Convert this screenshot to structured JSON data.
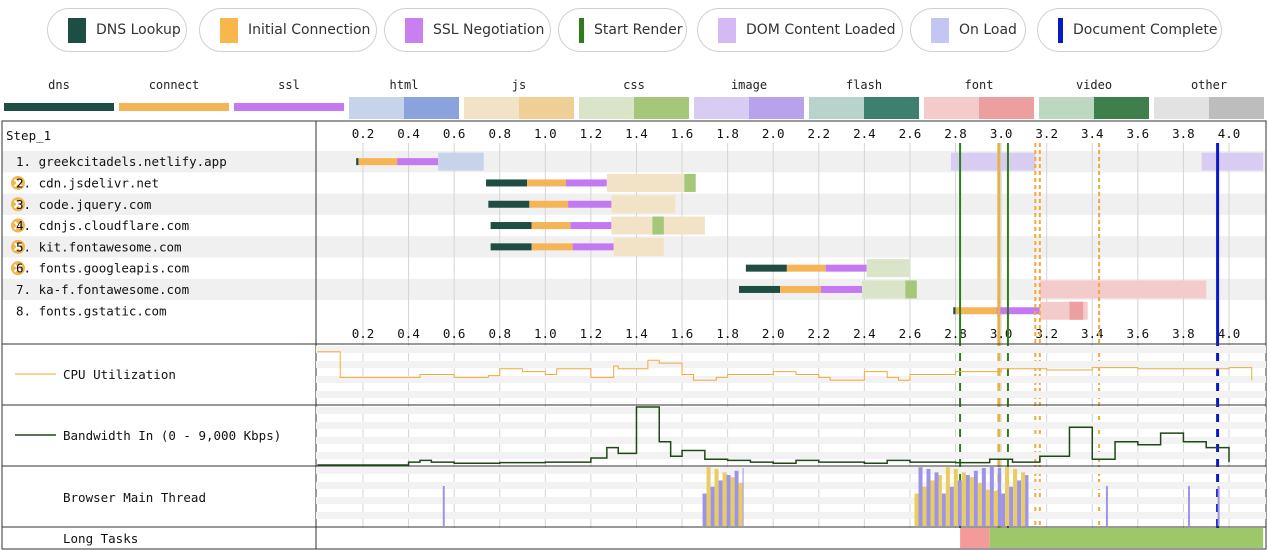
{
  "legend": [
    {
      "label": "DNS Lookup",
      "color": "#1e4d44",
      "kind": "box"
    },
    {
      "label": "Initial Connection",
      "color": "#f8b64c",
      "kind": "box"
    },
    {
      "label": "SSL Negotiation",
      "color": "#c97ff0",
      "kind": "box"
    },
    {
      "label": "Start Render",
      "color": "#2e7d1a",
      "kind": "line"
    },
    {
      "label": "DOM Content Loaded",
      "color": "#d5b9f5",
      "kind": "box"
    },
    {
      "label": "On Load",
      "color": "#c3c5f3",
      "kind": "box"
    },
    {
      "label": "Document Complete",
      "color": "#0a19c7",
      "kind": "line"
    }
  ],
  "content_types": [
    {
      "label": "dns",
      "light": "#1e4d44",
      "dark": "#1e4d44"
    },
    {
      "label": "connect",
      "light": "#f5b556",
      "dark": "#f5b556"
    },
    {
      "label": "ssl",
      "light": "#c479f2",
      "dark": "#c479f2"
    },
    {
      "label": "html",
      "light": "#c6d3ea",
      "dark": "#8aa3dc"
    },
    {
      "label": "js",
      "light": "#f2e2c6",
      "dark": "#efcf96"
    },
    {
      "label": "css",
      "light": "#d9e4c9",
      "dark": "#a4c77a"
    },
    {
      "label": "image",
      "light": "#d9ccf2",
      "dark": "#b7a2ec"
    },
    {
      "label": "flash",
      "light": "#b8d3cc",
      "dark": "#3e8070"
    },
    {
      "label": "font",
      "light": "#f4cbcb",
      "dark": "#ec9f9f"
    },
    {
      "label": "video",
      "light": "#bcd8c0",
      "dark": "#3f7f4c"
    },
    {
      "label": "other",
      "light": "#e2e2e2",
      "dark": "#bdbdbd"
    }
  ],
  "chart_data": {
    "type": "waterfall",
    "step_label": "Step_1",
    "x_ticks": [
      "0.2",
      "0.4",
      "0.6",
      "0.8",
      "1.0",
      "1.2",
      "1.4",
      "1.6",
      "1.8",
      "2.0",
      "2.2",
      "2.4",
      "2.6",
      "2.8",
      "3.0",
      "3.2",
      "3.4",
      "3.6",
      "3.8",
      "4.0"
    ],
    "xlim": [
      0,
      4.15
    ],
    "requests": [
      {
        "label": "1. greekcitadels.netlify.app",
        "blocked": false,
        "dns": [
          0.17,
          0.18
        ],
        "connect": [
          0.18,
          0.35
        ],
        "ssl": [
          0.35,
          0.53
        ],
        "ttfb": [
          0.53,
          0.73
        ],
        "ttfb_type": "html",
        "download": [],
        "dl_type": "html"
      },
      {
        "label": "2. cdn.jsdelivr.net",
        "blocked": true,
        "dns": [
          0.74,
          0.92
        ],
        "connect": [
          0.92,
          1.09
        ],
        "ssl": [
          1.09,
          1.27
        ],
        "ttfb": [
          1.27,
          1.61
        ],
        "ttfb_type": "js",
        "download": [
          1.61,
          1.66
        ],
        "dl_type": "css"
      },
      {
        "label": "3. code.jquery.com",
        "blocked": true,
        "dns": [
          0.75,
          0.93
        ],
        "connect": [
          0.93,
          1.1
        ],
        "ssl": [
          1.1,
          1.29
        ],
        "ttfb": [
          1.29,
          1.57
        ],
        "ttfb_type": "js",
        "download": [],
        "dl_type": "js"
      },
      {
        "label": "4. cdnjs.cloudflare.com",
        "blocked": true,
        "dns": [
          0.76,
          0.94
        ],
        "connect": [
          0.94,
          1.11
        ],
        "ssl": [
          1.11,
          1.29
        ],
        "ttfb": [
          1.29,
          1.7
        ],
        "ttfb_type": "js",
        "download": [
          1.47,
          1.52
        ],
        "dl_type": "css"
      },
      {
        "label": "5. kit.fontawesome.com",
        "blocked": true,
        "dns": [
          0.76,
          0.94
        ],
        "connect": [
          0.94,
          1.12
        ],
        "ssl": [
          1.12,
          1.3
        ],
        "ttfb": [
          1.3,
          1.52
        ],
        "ttfb_type": "js",
        "download": [],
        "dl_type": "js"
      },
      {
        "label": "6. fonts.googleapis.com",
        "blocked": true,
        "dns": [
          1.88,
          2.06
        ],
        "connect": [
          2.06,
          2.23
        ],
        "ssl": [
          2.23,
          2.41
        ],
        "ttfb": [
          2.41,
          2.6
        ],
        "ttfb_type": "css",
        "download": [],
        "dl_type": "css"
      },
      {
        "label": "7. ka-f.fontawesome.com",
        "blocked": false,
        "dns": [
          1.85,
          2.03
        ],
        "connect": [
          2.03,
          2.21
        ],
        "ssl": [
          2.21,
          2.39
        ],
        "ttfb": [
          2.39,
          2.63
        ],
        "ttfb_type": "css",
        "download": [
          2.58,
          2.63
        ],
        "dl_type": "css"
      },
      {
        "label": "8. fonts.gstatic.com",
        "blocked": false,
        "dns": [
          2.79,
          2.8
        ],
        "connect": [
          2.8,
          2.98
        ],
        "ssl": [
          2.98,
          3.17
        ],
        "ttfb": [
          3.17,
          3.38
        ],
        "ttfb_type": "font",
        "download": [
          3.3,
          3.36
        ],
        "dl_type": "font"
      }
    ],
    "extra_bars": [
      {
        "row": 0,
        "range": [
          2.78,
          3.15
        ],
        "type": "image"
      },
      {
        "row": 0,
        "range": [
          3.88,
          4.15
        ],
        "type": "image"
      },
      {
        "row": 6,
        "range": [
          3.17,
          3.9
        ],
        "type": "font"
      }
    ],
    "markers": {
      "start_render": [
        2.82,
        3.03
      ],
      "dom_content_loaded": [
        2.99
      ],
      "on_load": [
        3.15,
        3.17
      ],
      "document_complete": [
        3.95
      ],
      "dashed_orange": [
        3.15,
        3.17,
        3.43
      ]
    },
    "cpu_series": {
      "label": "CPU Utilization",
      "x": [
        0.0,
        0.1,
        0.3,
        0.45,
        0.6,
        0.75,
        0.8,
        0.9,
        1.0,
        1.05,
        1.2,
        1.3,
        1.32,
        1.45,
        1.5,
        1.6,
        1.65,
        1.75,
        1.8,
        2.0,
        2.1,
        2.2,
        2.25,
        2.4,
        2.5,
        2.55,
        2.6,
        2.8,
        3.0,
        3.2,
        3.4,
        3.6,
        3.8,
        4.0,
        4.1
      ],
      "y": [
        90,
        45,
        45,
        50,
        45,
        48,
        60,
        55,
        50,
        60,
        45,
        65,
        60,
        75,
        70,
        50,
        40,
        45,
        50,
        55,
        50,
        45,
        40,
        55,
        45,
        40,
        50,
        55,
        60,
        58,
        62,
        60,
        60,
        62,
        40
      ]
    },
    "bandwidth_series": {
      "label": "Bandwidth In (0 - 9,000 Kbps)",
      "x": [
        0.0,
        0.2,
        0.4,
        0.45,
        0.5,
        0.6,
        0.8,
        1.0,
        1.2,
        1.27,
        1.32,
        1.4,
        1.5,
        1.55,
        1.6,
        1.7,
        1.8,
        1.9,
        2.0,
        2.1,
        2.2,
        2.4,
        2.5,
        2.6,
        2.8,
        2.95,
        3.05,
        3.17,
        3.3,
        3.4,
        3.5,
        3.6,
        3.7,
        3.8,
        3.9,
        4.0
      ],
      "y": [
        0,
        0,
        5,
        8,
        5,
        3,
        4,
        5,
        12,
        30,
        20,
        100,
        40,
        15,
        25,
        10,
        8,
        5,
        3,
        8,
        5,
        3,
        8,
        5,
        4,
        10,
        5,
        15,
        65,
        10,
        40,
        35,
        55,
        40,
        30,
        5
      ]
    },
    "main_thread": {
      "label": "Browser Main Thread",
      "bursts": [
        {
          "range": [
            1.69,
            1.87
          ],
          "colors": [
            "#9d94ea",
            "#e9cd5e"
          ]
        },
        {
          "range": [
            2.62,
            2.74
          ],
          "colors": [
            "#e9cd5e",
            "#9d94ea"
          ]
        },
        {
          "range": [
            2.74,
            3.0
          ],
          "colors": [
            "#9d94ea",
            "#e9cd5e"
          ]
        },
        {
          "range": [
            3.0,
            3.12
          ],
          "colors": [
            "#9d94ea",
            "#e9cd5e"
          ]
        }
      ]
    },
    "long_tasks": {
      "label": "Long Tasks",
      "segments": [
        {
          "range": [
            2.82,
            2.95
          ],
          "color": "#f49a9a"
        },
        {
          "range": [
            2.95,
            4.15
          ],
          "color": "#9cc86a"
        }
      ]
    }
  }
}
